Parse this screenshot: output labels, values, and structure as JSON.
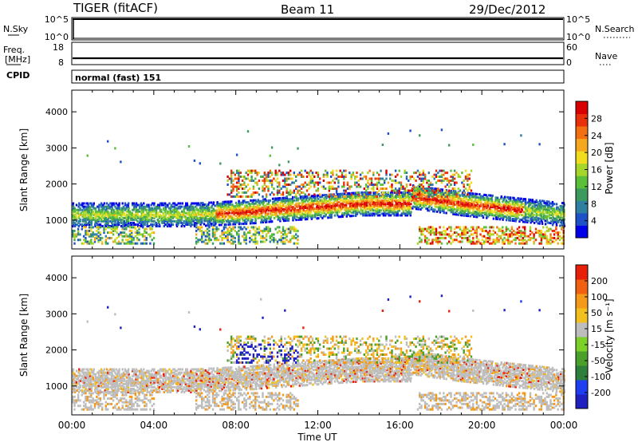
{
  "header": {
    "site": "TIGER (fitACF)",
    "beam": "Beam 11",
    "date": "29/Dec/2012"
  },
  "strips": {
    "nsky_label": "N.Sky",
    "nsky_ticks": [
      "10^5",
      "10^0"
    ],
    "nsearch_label": "N.Search",
    "nsearch_ticks": [
      "10^5",
      "10^0"
    ],
    "freq_label": "Freq.",
    "freq_unit": "[MHz]",
    "freq_ticks": [
      "18",
      "8"
    ],
    "nave_label": "Nave",
    "nave_ticks": [
      "60",
      "0"
    ],
    "cpid_label": "CPID",
    "cpid_value": "normal (fast) 151"
  },
  "chart_data": [
    {
      "type": "heatmap",
      "name": "power",
      "ylabel": "Slant Range [km]",
      "yticks": [
        1000,
        2000,
        3000,
        4000
      ],
      "ylim": [
        200,
        4600
      ],
      "xlim": [
        0,
        24
      ],
      "colorbar": {
        "label": "Power [dB]",
        "ticks": [
          "28",
          "24",
          "20",
          "16",
          "12",
          "8",
          "4"
        ],
        "colors": [
          "#0000e8",
          "#1e50c8",
          "#2f7fa0",
          "#3c9a5c",
          "#5cbf3a",
          "#a6d62a",
          "#f2dc1e",
          "#f5a81e",
          "#f36f12",
          "#e8300a",
          "#d80000"
        ]
      }
    },
    {
      "type": "heatmap",
      "name": "velocity",
      "xlabel": "Time UT",
      "ylabel": "Slant Range [km]",
      "yticks": [
        1000,
        2000,
        3000,
        4000
      ],
      "ylim": [
        200,
        4600
      ],
      "xlim": [
        0,
        24
      ],
      "xticks": [
        "00:00",
        "04:00",
        "08:00",
        "12:00",
        "16:00",
        "20:00",
        "00:00"
      ],
      "colorbar": {
        "label": "Velocity [m s⁻¹]",
        "ticks": [
          "200",
          "100",
          "50",
          "15",
          "-15",
          "-50",
          "-100",
          "-200"
        ],
        "colors": [
          "#2020c0",
          "#1e3ef0",
          "#2e7f3c",
          "#4aa02a",
          "#7cd02a",
          "#bdbdbd",
          "#f2c01e",
          "#f59a18",
          "#f06010",
          "#e8200a"
        ]
      }
    }
  ]
}
